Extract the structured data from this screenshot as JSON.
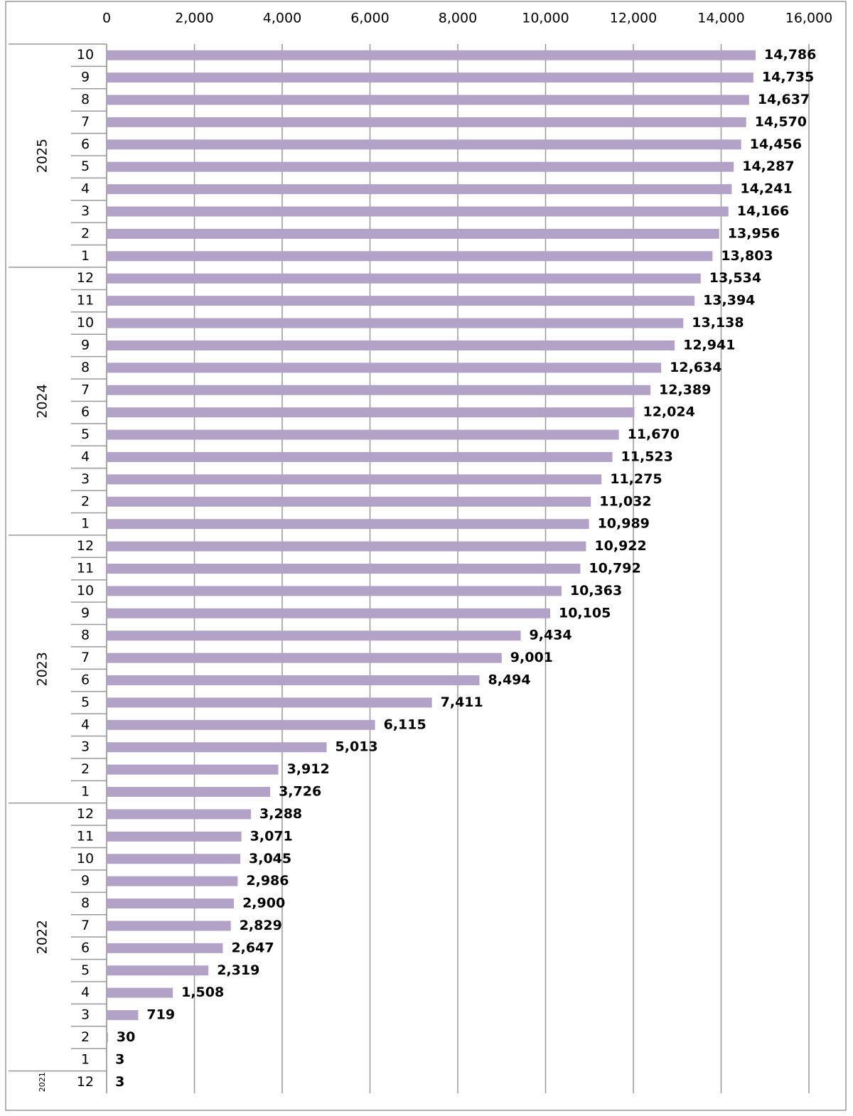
{
  "chart_data": {
    "type": "bar",
    "orientation": "horizontal",
    "color": "#b3a2c7",
    "grid": true,
    "xlim": [
      0,
      16000
    ],
    "xticks": [
      0,
      {
        "value": 2000,
        "label": "2,000"
      },
      {
        "value": 4000,
        "label": "4,000"
      },
      {
        "value": 6000,
        "label": "6,000"
      },
      {
        "value": 8000,
        "label": "8,000"
      },
      {
        "value": 10000,
        "label": "10,000"
      },
      {
        "value": 12000,
        "label": "12,000"
      },
      {
        "value": 14000,
        "label": "14,000"
      },
      {
        "value": 16000,
        "label": "16,000"
      }
    ],
    "groups": [
      {
        "name": "2025",
        "categories": [
          "10",
          "9",
          "8",
          "7",
          "6",
          "5",
          "4",
          "3",
          "2",
          "1"
        ],
        "values": [
          14786,
          14735,
          14637,
          14570,
          14456,
          14287,
          14241,
          14166,
          13956,
          13803
        ],
        "value_labels": [
          "14,786",
          "14,735",
          "14,637",
          "14,570",
          "14,456",
          "14,287",
          "14,241",
          "14,166",
          "13,956",
          "13,803"
        ]
      },
      {
        "name": "2024",
        "categories": [
          "12",
          "11",
          "10",
          "9",
          "8",
          "7",
          "6",
          "5",
          "4",
          "3",
          "2",
          "1"
        ],
        "values": [
          13534,
          13394,
          13138,
          12941,
          12634,
          12389,
          12024,
          11670,
          11523,
          11275,
          11032,
          10989
        ],
        "value_labels": [
          "13,534",
          "13,394",
          "13,138",
          "12,941",
          "12,634",
          "12,389",
          "12,024",
          "11,670",
          "11,523",
          "11,275",
          "11,032",
          "10,989"
        ]
      },
      {
        "name": "2023",
        "categories": [
          "12",
          "11",
          "10",
          "9",
          "8",
          "7",
          "6",
          "5",
          "4",
          "3",
          "2",
          "1"
        ],
        "values": [
          10922,
          10792,
          10363,
          10105,
          9434,
          9001,
          8494,
          7411,
          6115,
          5013,
          3912,
          3726
        ],
        "value_labels": [
          "10,922",
          "10,792",
          "10,363",
          "10,105",
          "9,434",
          "9,001",
          "8,494",
          "7,411",
          "6,115",
          "5,013",
          "3,912",
          "3,726"
        ]
      },
      {
        "name": "2022",
        "categories": [
          "12",
          "11",
          "10",
          "9",
          "8",
          "7",
          "6",
          "5",
          "4",
          "3",
          "2",
          "1"
        ],
        "values": [
          3288,
          3071,
          3045,
          2986,
          2900,
          2829,
          2647,
          2319,
          1508,
          719,
          30,
          3
        ],
        "value_labels": [
          "3,288",
          "3,071",
          "3,045",
          "2,986",
          "2,900",
          "2,829",
          "2,647",
          "2,319",
          "1,508",
          "719",
          "30",
          "3"
        ]
      },
      {
        "name": "2021",
        "categories": [
          "12"
        ],
        "values": [
          3
        ],
        "value_labels": [
          "3"
        ]
      }
    ]
  }
}
